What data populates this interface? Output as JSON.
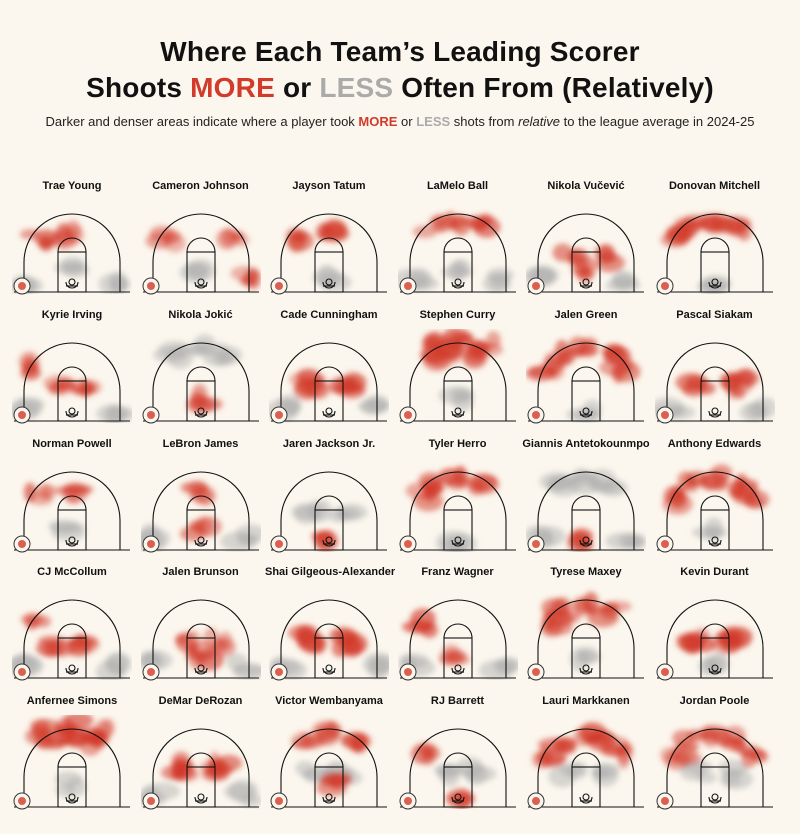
{
  "header": {
    "title_line1": "Where Each Team’s Leading Scorer",
    "title_line2_pre": "Shoots ",
    "title_more": "MORE",
    "title_mid": " or ",
    "title_less": "LESS",
    "title_post": " Often From (Relatively)",
    "subtitle_pre": "Darker and denser areas indicate where a player took ",
    "subtitle_more": "MORE",
    "subtitle_or": " or ",
    "subtitle_less": "LESS",
    "subtitle_mid": " shots from ",
    "subtitle_relative": "relative",
    "subtitle_post": " to the league average in 2024-25"
  },
  "colors": {
    "more": "#d23a2a",
    "less": "#aaaaaa",
    "background": "#fbf7ee"
  },
  "chart_data": {
    "type": "heatmap",
    "title": "Where Each Team’s Leading Scorer Shoots MORE or LESS Often From (Relatively)",
    "season": "2024-25",
    "legend": [
      "MORE",
      "LESS"
    ],
    "players": [
      {
        "name": "Trae Young",
        "team_logo": "hawks-logo",
        "hotspots": [
          "top-of-key",
          "left-wing"
        ],
        "coldspots": [
          "corners",
          "paint"
        ]
      },
      {
        "name": "Cameron Johnson",
        "team_logo": "nets-logo",
        "hotspots": [
          "left-wing",
          "right-wing",
          "right-corner"
        ],
        "coldspots": [
          "paint"
        ]
      },
      {
        "name": "Jayson Tatum",
        "team_logo": "celtics-logo",
        "hotspots": [
          "top-of-key",
          "left-wing"
        ],
        "coldspots": [
          "restricted-area"
        ]
      },
      {
        "name": "LaMelo Ball",
        "team_logo": "hornets-logo",
        "hotspots": [
          "above-break-three"
        ],
        "coldspots": [
          "paint",
          "corners"
        ]
      },
      {
        "name": "Nikola Vučević",
        "team_logo": "bulls-logo",
        "hotspots": [
          "paint",
          "mid-range"
        ],
        "coldspots": [
          "corners"
        ]
      },
      {
        "name": "Donovan Mitchell",
        "team_logo": "cavaliers-logo",
        "hotspots": [
          "above-break-three",
          "left-wing"
        ],
        "coldspots": [
          "restricted-area"
        ]
      },
      {
        "name": "Kyrie Irving",
        "team_logo": "mavericks-logo",
        "hotspots": [
          "mid-range",
          "left-wing"
        ],
        "coldspots": [
          "corners"
        ]
      },
      {
        "name": "Nikola Jokić",
        "team_logo": "nuggets-logo",
        "hotspots": [
          "paint"
        ],
        "coldspots": [
          "above-break-three"
        ]
      },
      {
        "name": "Cade Cunningham",
        "team_logo": "pistons-logo",
        "hotspots": [
          "mid-range",
          "elbows"
        ],
        "coldspots": [
          "corners"
        ]
      },
      {
        "name": "Stephen Curry",
        "team_logo": "warriors-logo",
        "hotspots": [
          "above-break-three",
          "deep-three"
        ],
        "coldspots": [
          "paint"
        ]
      },
      {
        "name": "Jalen Green",
        "team_logo": "rockets-logo",
        "hotspots": [
          "above-break-three",
          "wings"
        ],
        "coldspots": [
          "restricted-area"
        ]
      },
      {
        "name": "Pascal Siakam",
        "team_logo": "pacers-logo",
        "hotspots": [
          "mid-range",
          "right-elbow"
        ],
        "coldspots": [
          "corners"
        ]
      },
      {
        "name": "Norman Powell",
        "team_logo": "clippers-logo",
        "hotspots": [
          "left-wing",
          "top-of-key"
        ],
        "coldspots": [
          "paint"
        ]
      },
      {
        "name": "LeBron James",
        "team_logo": "lakers-logo",
        "hotspots": [
          "paint",
          "top-of-key"
        ],
        "coldspots": [
          "corners"
        ]
      },
      {
        "name": "Jaren Jackson Jr.",
        "team_logo": "grizzlies-logo",
        "hotspots": [
          "restricted-area"
        ],
        "coldspots": [
          "mid-range"
        ]
      },
      {
        "name": "Tyler Herro",
        "team_logo": "heat-logo",
        "hotspots": [
          "above-break-three",
          "left-wing"
        ],
        "coldspots": [
          "restricted-area"
        ]
      },
      {
        "name": "Giannis Antetokounmpo",
        "team_logo": "bucks-logo",
        "hotspots": [
          "restricted-area"
        ],
        "coldspots": [
          "above-break-three",
          "corners"
        ]
      },
      {
        "name": "Anthony Edwards",
        "team_logo": "timberwolves-logo",
        "hotspots": [
          "above-break-three",
          "wings"
        ],
        "coldspots": [
          "paint"
        ]
      },
      {
        "name": "CJ McCollum",
        "team_logo": "pelicans-logo",
        "hotspots": [
          "mid-range",
          "left-wing"
        ],
        "coldspots": [
          "corners"
        ]
      },
      {
        "name": "Jalen Brunson",
        "team_logo": "knicks-logo",
        "hotspots": [
          "mid-range",
          "paint"
        ],
        "coldspots": [
          "corners"
        ]
      },
      {
        "name": "Shai Gilgeous-Alexander",
        "team_logo": "thunder-logo",
        "hotspots": [
          "mid-range",
          "elbows"
        ],
        "coldspots": [
          "corners"
        ]
      },
      {
        "name": "Franz Wagner",
        "team_logo": "magic-logo",
        "hotspots": [
          "paint",
          "left-wing"
        ],
        "coldspots": [
          "corners"
        ]
      },
      {
        "name": "Tyrese Maxey",
        "team_logo": "76ers-logo",
        "hotspots": [
          "above-break-three",
          "left-wing"
        ],
        "coldspots": [
          "paint"
        ]
      },
      {
        "name": "Kevin Durant",
        "team_logo": "suns-logo",
        "hotspots": [
          "mid-range",
          "elbows"
        ],
        "coldspots": [
          "restricted-area"
        ]
      },
      {
        "name": "Anfernee Simons",
        "team_logo": "trail-blazers-logo",
        "hotspots": [
          "above-break-three",
          "deep-three"
        ],
        "coldspots": [
          "paint"
        ]
      },
      {
        "name": "DeMar DeRozan",
        "team_logo": "kings-logo",
        "hotspots": [
          "mid-range",
          "elbows"
        ],
        "coldspots": [
          "corners"
        ]
      },
      {
        "name": "Victor Wembanyama",
        "team_logo": "spurs-logo",
        "hotspots": [
          "above-break-three",
          "paint"
        ],
        "coldspots": [
          "mid-range"
        ]
      },
      {
        "name": "RJ Barrett",
        "team_logo": "raptors-logo",
        "hotspots": [
          "restricted-area",
          "left-wing"
        ],
        "coldspots": [
          "mid-range"
        ]
      },
      {
        "name": "Lauri Markkanen",
        "team_logo": "jazz-logo",
        "hotspots": [
          "above-break-three",
          "wings"
        ],
        "coldspots": [
          "mid-range"
        ]
      },
      {
        "name": "Jordan Poole",
        "team_logo": "wizards-logo",
        "hotspots": [
          "above-break-three",
          "wings"
        ],
        "coldspots": [
          "mid-range"
        ]
      }
    ]
  }
}
